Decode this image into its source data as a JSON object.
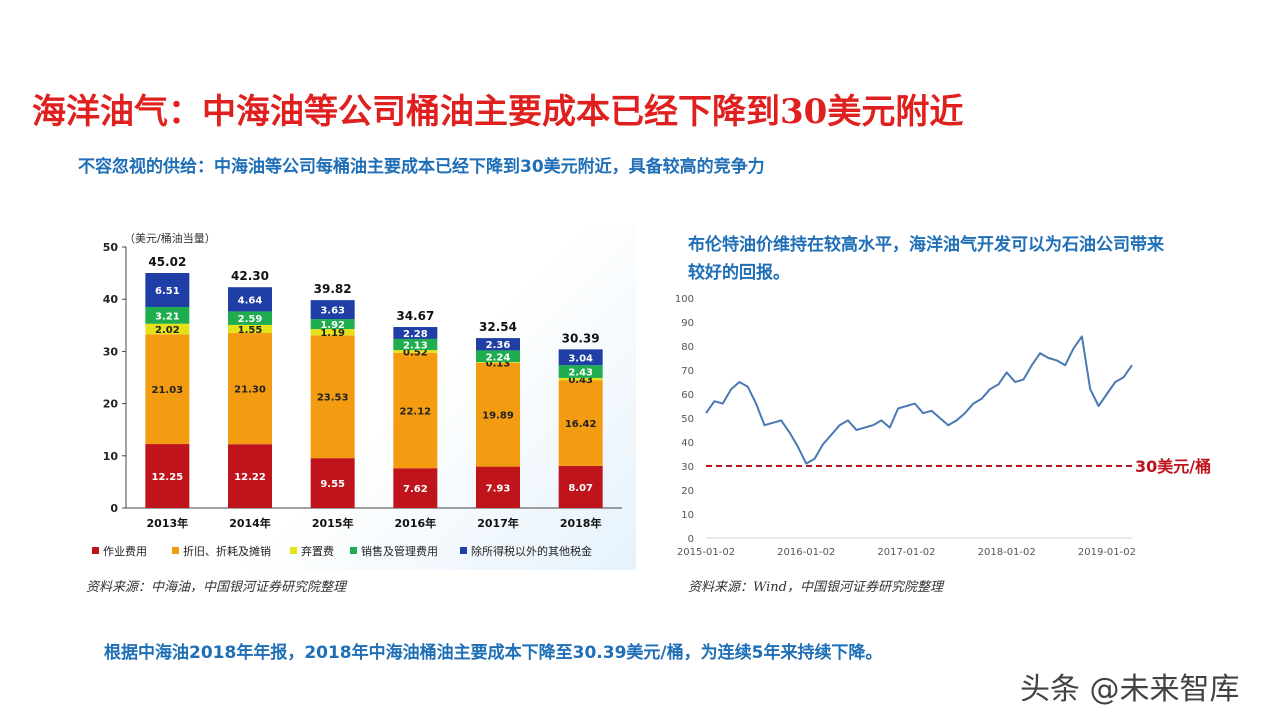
{
  "page": {
    "title": "海洋油气：中海油等公司桶油主要成本已经下降到30美元附近",
    "subtitle": "不容忽视的供给：中海油等公司每桶油主要成本已经下降到30美元附近，具备较高的竞争力",
    "source_left": "资料来源：中海油，中国银河证券研究院整理",
    "chart2_title": "布伦特油价维持在较高水平，海洋油气开发可以为石油公司带来较好的回报。",
    "source_right": "资料来源：Wind，中国银河证券研究院整理",
    "conclusion": "根据中海油2018年年报，2018年中海油桶油主要成本下降至30.39美元/桶，为连续5年来持续下降。",
    "watermark": "头条 @未来智库"
  },
  "chart_data": [
    {
      "type": "bar",
      "stacked": true,
      "unit_label": "（美元/桶油当量）",
      "categories": [
        "2013年",
        "2014年",
        "2015年",
        "2016年",
        "2017年",
        "2018年"
      ],
      "totals": [
        "45.02",
        "42.30",
        "39.82",
        "34.67",
        "32.54",
        "30.39"
      ],
      "ylim": [
        0,
        50
      ],
      "yticks": [
        0,
        10,
        20,
        30,
        40,
        50
      ],
      "series": [
        {
          "name": "作业费用",
          "color": "#c0141c",
          "values": [
            12.25,
            12.22,
            9.55,
            7.62,
            7.93,
            8.07
          ]
        },
        {
          "name": "折旧、折耗及摊销",
          "color": "#f39c12",
          "values": [
            21.03,
            21.3,
            23.53,
            22.12,
            19.89,
            16.42
          ]
        },
        {
          "name": "弃置费",
          "color": "#e6e21a",
          "values": [
            2.02,
            1.55,
            1.19,
            0.52,
            0.13,
            0.43
          ]
        },
        {
          "name": "销售及管理费用",
          "color": "#1fad4f",
          "values": [
            3.21,
            2.59,
            1.92,
            2.13,
            2.24,
            2.43
          ]
        },
        {
          "name": "除所得税以外的其他税金",
          "color": "#1f3fa6",
          "values": [
            6.51,
            4.64,
            3.63,
            2.28,
            2.36,
            3.04
          ]
        }
      ],
      "legend_position": "bottom"
    },
    {
      "type": "line",
      "series_name": "布伦特油价",
      "color": "#4a78b5",
      "x_ticks": [
        "2015-01-02",
        "2016-01-02",
        "2017-01-02",
        "2018-01-02",
        "2019-01-02"
      ],
      "ylim": [
        0,
        100
      ],
      "yticks": [
        0,
        10,
        20,
        30,
        40,
        50,
        60,
        70,
        80,
        90,
        100
      ],
      "reference_line": {
        "value": 30,
        "label": "30美元/桶",
        "color": "#c0141c"
      },
      "x": [
        "2015-01",
        "2015-02",
        "2015-03",
        "2015-04",
        "2015-05",
        "2015-06",
        "2015-07",
        "2015-08",
        "2015-09",
        "2015-10",
        "2015-11",
        "2015-12",
        "2016-01",
        "2016-02",
        "2016-03",
        "2016-04",
        "2016-05",
        "2016-06",
        "2016-07",
        "2016-08",
        "2016-09",
        "2016-10",
        "2016-11",
        "2016-12",
        "2017-01",
        "2017-02",
        "2017-03",
        "2017-04",
        "2017-05",
        "2017-06",
        "2017-07",
        "2017-08",
        "2017-09",
        "2017-10",
        "2017-11",
        "2017-12",
        "2018-01",
        "2018-02",
        "2018-03",
        "2018-04",
        "2018-05",
        "2018-06",
        "2018-07",
        "2018-08",
        "2018-09",
        "2018-10",
        "2018-11",
        "2018-12",
        "2019-01",
        "2019-02",
        "2019-03",
        "2019-04"
      ],
      "values": [
        52,
        57,
        56,
        62,
        65,
        63,
        56,
        47,
        48,
        49,
        44,
        38,
        31,
        33,
        39,
        43,
        47,
        49,
        45,
        46,
        47,
        49,
        46,
        54,
        55,
        56,
        52,
        53,
        50,
        47,
        49,
        52,
        56,
        58,
        62,
        64,
        69,
        65,
        66,
        72,
        77,
        75,
        74,
        72,
        79,
        84,
        62,
        55,
        60,
        65,
        67,
        72
      ],
      "grid": false
    }
  ]
}
